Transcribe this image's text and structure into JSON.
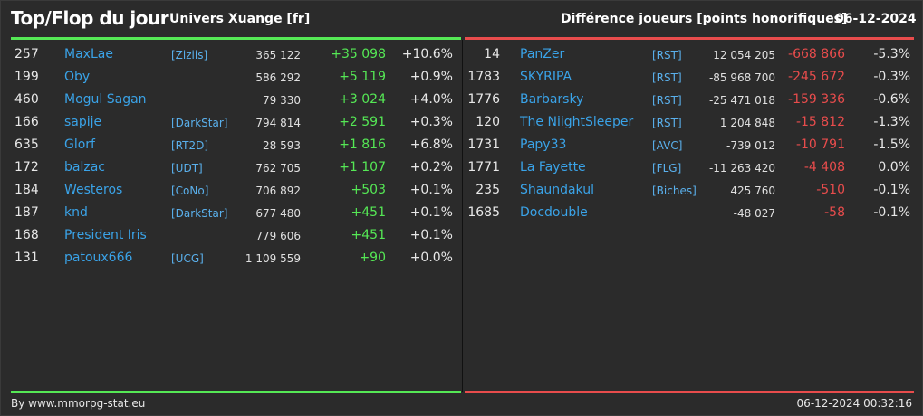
{
  "header": {
    "title": "Top/Flop du jour",
    "universe": "Univers Xuange [fr]",
    "metric": "Différence joueurs [points honorifiques]",
    "date": "06-12-2024"
  },
  "colors": {
    "top": "#55e855",
    "flop": "#e84c4c",
    "link": "#3aa3e8"
  },
  "top": [
    {
      "rank": "257",
      "name": "MaxLae",
      "alliance": "[Ziziis]",
      "points": "365 122",
      "diff": "+35 098",
      "pct": "+10.6%"
    },
    {
      "rank": "199",
      "name": "Oby",
      "alliance": "",
      "points": "586 292",
      "diff": "+5 119",
      "pct": "+0.9%"
    },
    {
      "rank": "460",
      "name": "Mogul Sagan",
      "alliance": "",
      "points": "79 330",
      "diff": "+3 024",
      "pct": "+4.0%"
    },
    {
      "rank": "166",
      "name": "sapije",
      "alliance": "[DarkStar]",
      "points": "794 814",
      "diff": "+2 591",
      "pct": "+0.3%"
    },
    {
      "rank": "635",
      "name": "Glorf",
      "alliance": "[RT2D]",
      "points": "28 593",
      "diff": "+1 816",
      "pct": "+6.8%"
    },
    {
      "rank": "172",
      "name": "balzac",
      "alliance": "[UDT]",
      "points": "762 705",
      "diff": "+1 107",
      "pct": "+0.2%"
    },
    {
      "rank": "184",
      "name": "Westeros",
      "alliance": "[CoNo]",
      "points": "706 892",
      "diff": "+503",
      "pct": "+0.1%"
    },
    {
      "rank": "187",
      "name": "knd",
      "alliance": "[DarkStar]",
      "points": "677 480",
      "diff": "+451",
      "pct": "+0.1%"
    },
    {
      "rank": "168",
      "name": "President Iris",
      "alliance": "",
      "points": "779 606",
      "diff": "+451",
      "pct": "+0.1%"
    },
    {
      "rank": "131",
      "name": "patoux666",
      "alliance": "[UCG]",
      "points": "1 109 559",
      "diff": "+90",
      "pct": "+0.0%"
    }
  ],
  "flop": [
    {
      "rank": "14",
      "name": "PanZer",
      "alliance": "[RST]",
      "points": "12 054 205",
      "diff": "-668 866",
      "pct": "-5.3%"
    },
    {
      "rank": "1783",
      "name": "SKYRIPA",
      "alliance": "[RST]",
      "points": "-85 968 700",
      "diff": "-245 672",
      "pct": "-0.3%"
    },
    {
      "rank": "1776",
      "name": "Barbarsky",
      "alliance": "[RST]",
      "points": "-25 471 018",
      "diff": "-159 336",
      "pct": "-0.6%"
    },
    {
      "rank": "120",
      "name": "The NiightSleeper",
      "alliance": "[RST]",
      "points": "1 204 848",
      "diff": "-15 812",
      "pct": "-1.3%"
    },
    {
      "rank": "1731",
      "name": "Papy33",
      "alliance": "[AVC]",
      "points": "-739 012",
      "diff": "-10 791",
      "pct": "-1.5%"
    },
    {
      "rank": "1771",
      "name": "La Fayette",
      "alliance": "[FLG]",
      "points": "-11 263 420",
      "diff": "-4 408",
      "pct": "0.0%"
    },
    {
      "rank": "235",
      "name": "Shaundakul",
      "alliance": "[Biches]",
      "points": "425 760",
      "diff": "-510",
      "pct": "-0.1%"
    },
    {
      "rank": "1685",
      "name": "Docdouble",
      "alliance": "",
      "points": "-48 027",
      "diff": "-58",
      "pct": "-0.1%"
    }
  ],
  "footer": {
    "credit": "By www.mmorpg-stat.eu",
    "timestamp": "06-12-2024 00:32:16"
  }
}
